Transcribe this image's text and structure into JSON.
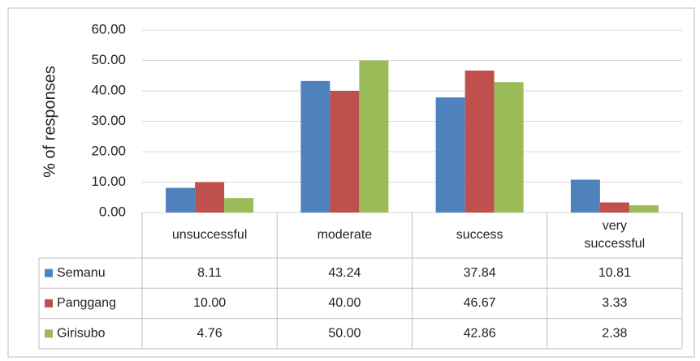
{
  "chart_data": {
    "type": "bar",
    "y_label": "% of responses",
    "categories": [
      "unsuccessful",
      "moderate",
      "success",
      "very successful"
    ],
    "series": [
      {
        "name": "Semanu",
        "color": "#4f81bd",
        "values": [
          8.11,
          43.24,
          37.84,
          10.81
        ],
        "value_labels": [
          "8.11",
          "43.24",
          "37.84",
          "10.81"
        ]
      },
      {
        "name": "Panggang",
        "color": "#c0504d",
        "values": [
          10,
          40,
          46.67,
          3.33
        ],
        "value_labels": [
          "10.00",
          "40.00",
          "46.67",
          "3.33"
        ]
      },
      {
        "name": "Girisubo",
        "color": "#9bbb59",
        "values": [
          4.76,
          50,
          42.86,
          2.38
        ],
        "value_labels": [
          "4.76",
          "50.00",
          "42.86",
          "2.38"
        ]
      }
    ],
    "ylim": [
      0,
      60
    ],
    "yticks": [
      {
        "value": 0,
        "label": "0.00"
      },
      {
        "value": 10,
        "label": "10.00"
      },
      {
        "value": 20,
        "label": "20.00"
      },
      {
        "value": 30,
        "label": "30.00"
      },
      {
        "value": 40,
        "label": "40.00"
      },
      {
        "value": 50,
        "label": "50.00"
      },
      {
        "value": 60,
        "label": "60.00"
      }
    ],
    "grid": true
  }
}
